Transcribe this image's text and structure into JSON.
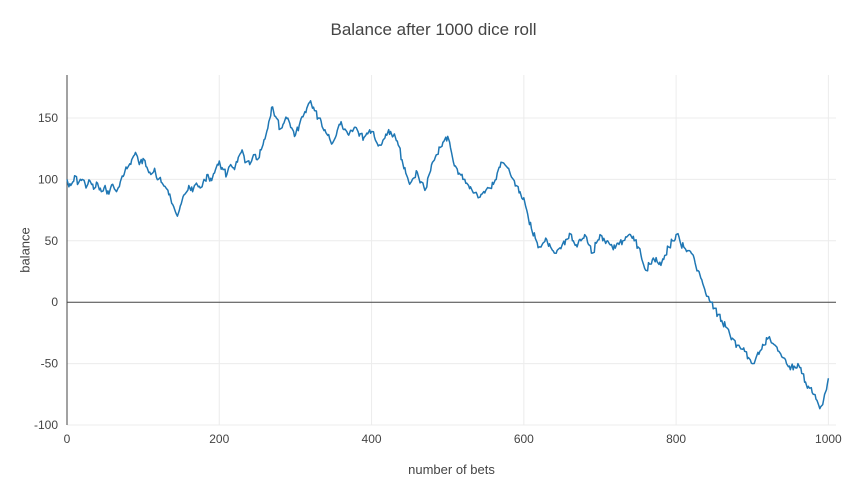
{
  "title": "Balance after 1000 dice roll",
  "chart_data": {
    "type": "line",
    "title": "Balance after 1000 dice roll",
    "xlabel": "number of bets",
    "ylabel": "balance",
    "xlim": [
      0,
      1010
    ],
    "ylim": [
      -100,
      185
    ],
    "x_ticks": [
      0,
      200,
      400,
      600,
      800,
      1000
    ],
    "y_ticks": [
      -100,
      -50,
      0,
      50,
      100,
      150
    ],
    "grid": true,
    "legend": "none",
    "colors": {
      "line": "#1f77b4",
      "zeroline": "#444444",
      "grid": "#ececec",
      "text": "#444444",
      "background": "#ffffff"
    },
    "series": [
      {
        "name": "balance",
        "points": [
          [
            0,
            100
          ],
          [
            5,
            95
          ],
          [
            10,
            103
          ],
          [
            15,
            97
          ],
          [
            20,
            100
          ],
          [
            25,
            93
          ],
          [
            30,
            99
          ],
          [
            35,
            92
          ],
          [
            40,
            97
          ],
          [
            45,
            90
          ],
          [
            50,
            95
          ],
          [
            55,
            88
          ],
          [
            60,
            96
          ],
          [
            65,
            90
          ],
          [
            70,
            98
          ],
          [
            75,
            104
          ],
          [
            80,
            110
          ],
          [
            85,
            116
          ],
          [
            90,
            122
          ],
          [
            95,
            112
          ],
          [
            100,
            117
          ],
          [
            105,
            110
          ],
          [
            110,
            104
          ],
          [
            115,
            109
          ],
          [
            120,
            100
          ],
          [
            125,
            97
          ],
          [
            130,
            93
          ],
          [
            135,
            88
          ],
          [
            140,
            78
          ],
          [
            145,
            70
          ],
          [
            150,
            80
          ],
          [
            155,
            88
          ],
          [
            160,
            95
          ],
          [
            165,
            90
          ],
          [
            170,
            97
          ],
          [
            175,
            93
          ],
          [
            180,
            100
          ],
          [
            185,
            104
          ],
          [
            190,
            99
          ],
          [
            195,
            108
          ],
          [
            200,
            115
          ],
          [
            205,
            108
          ],
          [
            210,
            104
          ],
          [
            215,
            112
          ],
          [
            220,
            108
          ],
          [
            225,
            118
          ],
          [
            230,
            124
          ],
          [
            235,
            114
          ],
          [
            240,
            112
          ],
          [
            245,
            120
          ],
          [
            250,
            116
          ],
          [
            255,
            124
          ],
          [
            260,
            133
          ],
          [
            265,
            147
          ],
          [
            270,
            159
          ],
          [
            275,
            150
          ],
          [
            280,
            141
          ],
          [
            285,
            146
          ],
          [
            290,
            150
          ],
          [
            295,
            142
          ],
          [
            300,
            136
          ],
          [
            305,
            144
          ],
          [
            310,
            151
          ],
          [
            315,
            158
          ],
          [
            320,
            164
          ],
          [
            325,
            156
          ],
          [
            330,
            150
          ],
          [
            335,
            143
          ],
          [
            340,
            138
          ],
          [
            345,
            133
          ],
          [
            350,
            131
          ],
          [
            355,
            140
          ],
          [
            360,
            147
          ],
          [
            365,
            141
          ],
          [
            370,
            136
          ],
          [
            375,
            139
          ],
          [
            380,
            142
          ],
          [
            385,
            137
          ],
          [
            390,
            134
          ],
          [
            395,
            137
          ],
          [
            400,
            139
          ],
          [
            405,
            132
          ],
          [
            410,
            128
          ],
          [
            415,
            132
          ],
          [
            420,
            136
          ],
          [
            425,
            139
          ],
          [
            430,
            137
          ],
          [
            435,
            128
          ],
          [
            440,
            116
          ],
          [
            445,
            105
          ],
          [
            450,
            96
          ],
          [
            455,
            101
          ],
          [
            460,
            106
          ],
          [
            465,
            98
          ],
          [
            470,
            91
          ],
          [
            475,
            103
          ],
          [
            480,
            114
          ],
          [
            485,
            120
          ],
          [
            490,
            126
          ],
          [
            495,
            131
          ],
          [
            500,
            135
          ],
          [
            505,
            122
          ],
          [
            510,
            111
          ],
          [
            515,
            105
          ],
          [
            520,
            100
          ],
          [
            525,
            97
          ],
          [
            530,
            94
          ],
          [
            535,
            89
          ],
          [
            540,
            85
          ],
          [
            545,
            88
          ],
          [
            550,
            91
          ],
          [
            555,
            93
          ],
          [
            560,
            96
          ],
          [
            565,
            105
          ],
          [
            570,
            114
          ],
          [
            575,
            112
          ],
          [
            580,
            109
          ],
          [
            585,
            101
          ],
          [
            590,
            95
          ],
          [
            595,
            90
          ],
          [
            600,
            85
          ],
          [
            605,
            72
          ],
          [
            610,
            60
          ],
          [
            615,
            52
          ],
          [
            620,
            45
          ],
          [
            625,
            48
          ],
          [
            630,
            51
          ],
          [
            635,
            45
          ],
          [
            640,
            40
          ],
          [
            645,
            43
          ],
          [
            650,
            46
          ],
          [
            655,
            51
          ],
          [
            660,
            56
          ],
          [
            665,
            50
          ],
          [
            670,
            45
          ],
          [
            675,
            50
          ],
          [
            680,
            55
          ],
          [
            685,
            47
          ],
          [
            690,
            40
          ],
          [
            695,
            48
          ],
          [
            700,
            55
          ],
          [
            705,
            52
          ],
          [
            710,
            50
          ],
          [
            715,
            47
          ],
          [
            720,
            44
          ],
          [
            725,
            47
          ],
          [
            730,
            50
          ],
          [
            735,
            53
          ],
          [
            740,
            55
          ],
          [
            745,
            50
          ],
          [
            750,
            45
          ],
          [
            755,
            35
          ],
          [
            760,
            26
          ],
          [
            765,
            31
          ],
          [
            770,
            36
          ],
          [
            775,
            33
          ],
          [
            780,
            30
          ],
          [
            785,
            38
          ],
          [
            790,
            45
          ],
          [
            795,
            50
          ],
          [
            800,
            55
          ],
          [
            805,
            50
          ],
          [
            810,
            45
          ],
          [
            815,
            42
          ],
          [
            820,
            40
          ],
          [
            825,
            32
          ],
          [
            830,
            25
          ],
          [
            835,
            15
          ],
          [
            840,
            5
          ],
          [
            845,
            0
          ],
          [
            850,
            -5
          ],
          [
            855,
            -10
          ],
          [
            860,
            -15
          ],
          [
            865,
            -20
          ],
          [
            870,
            -25
          ],
          [
            875,
            -30
          ],
          [
            880,
            -35
          ],
          [
            885,
            -38
          ],
          [
            890,
            -40
          ],
          [
            895,
            -45
          ],
          [
            900,
            -50
          ],
          [
            905,
            -45
          ],
          [
            910,
            -40
          ],
          [
            915,
            -35
          ],
          [
            920,
            -30
          ],
          [
            925,
            -33
          ],
          [
            930,
            -35
          ],
          [
            935,
            -40
          ],
          [
            940,
            -45
          ],
          [
            945,
            -50
          ],
          [
            950,
            -55
          ],
          [
            955,
            -52
          ],
          [
            960,
            -50
          ],
          [
            965,
            -58
          ],
          [
            970,
            -65
          ],
          [
            975,
            -70
          ],
          [
            980,
            -75
          ],
          [
            985,
            -80
          ],
          [
            990,
            -85
          ],
          [
            995,
            -75
          ],
          [
            1000,
            -62
          ]
        ]
      }
    ]
  }
}
